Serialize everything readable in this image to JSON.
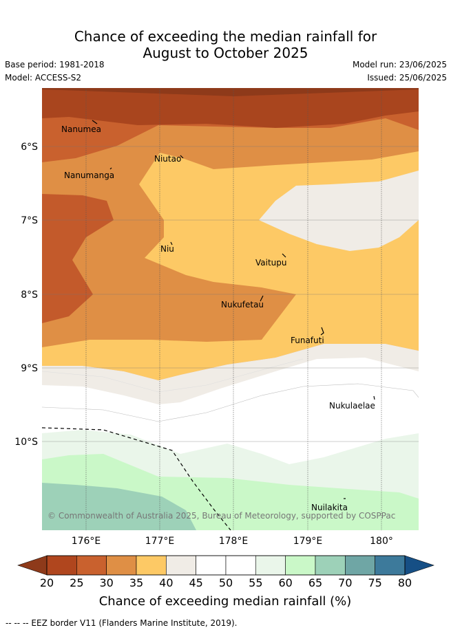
{
  "title": {
    "line1": "Chance of exceeding the median rainfall for",
    "line2": "August to October 2025"
  },
  "meta": {
    "base_period": "Base period: 1981-2018",
    "model": "Model: ACCESS-S2",
    "model_run": "Model run: 23/06/2025",
    "issued": "Issued: 25/06/2025"
  },
  "map": {
    "lat_labels": [
      "6°S",
      "7°S",
      "8°S",
      "9°S",
      "10°S"
    ],
    "lon_labels": [
      "176°E",
      "177°E",
      "178°E",
      "179°E",
      "180°"
    ],
    "places": [
      "Nanumea",
      "Nanumanga",
      "Niutao",
      "Niu",
      "Vaitupu",
      "Nukufetau",
      "Funafuti",
      "Nukulaelae",
      "Nuilakita"
    ],
    "copyright": "© Commonwealth of Australia 2025, Bureau of Meteorology, supported by COSPPac"
  },
  "colorbar": {
    "labels": [
      "20",
      "25",
      "30",
      "35",
      "40",
      "45",
      "50",
      "55",
      "60",
      "65",
      "70",
      "75",
      "80"
    ],
    "colors": [
      "#8e3a1a",
      "#b0461e",
      "#c9612e",
      "#df8f45",
      "#fdc965",
      "#f0ece6",
      "#ffffff",
      "#ffffff",
      "#eaf6ea",
      "#caf8c8",
      "#9dd1b8",
      "#6fa6a5",
      "#3d7a9b",
      "#164f85"
    ],
    "title": "Chance of exceeding median rainfall (%)"
  },
  "footer": "--  --  -- EEZ border V11 (Flanders Marine Institute, 2019)."
}
